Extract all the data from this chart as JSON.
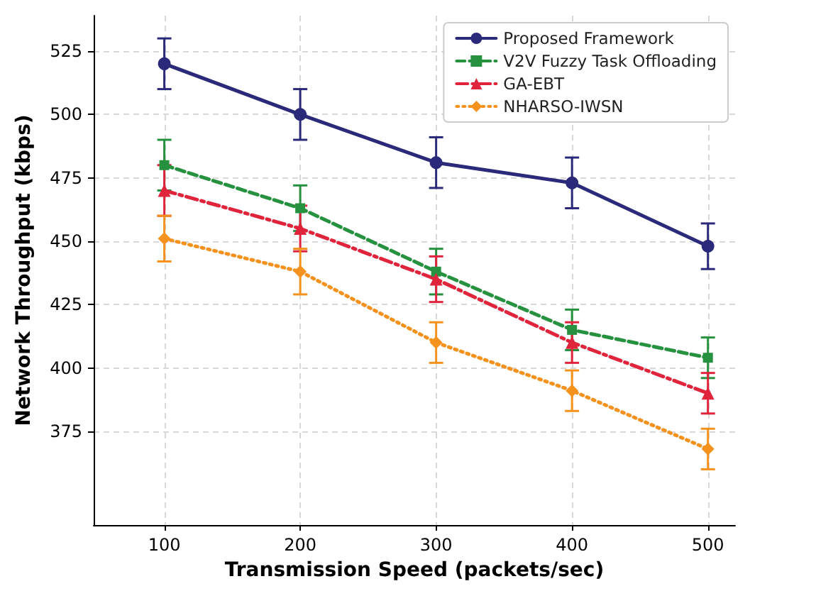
{
  "chart_data": {
    "type": "line",
    "xlabel": "Transmission Speed (packets/sec)",
    "ylabel": "Network Throughput (kbps)",
    "x": [
      100,
      200,
      300,
      400,
      500
    ],
    "xlim": [
      48,
      520
    ],
    "xticks": [
      100,
      200,
      300,
      400,
      500
    ],
    "ylim": [
      338,
      539
    ],
    "yticks": [
      375,
      400,
      425,
      450,
      475,
      500,
      525
    ],
    "grid": true,
    "legend": "top right",
    "series": [
      {
        "name": "Proposed Framework",
        "color": "#2b2a7a",
        "marker": "circle",
        "line_style": "solid",
        "values": [
          520,
          500,
          481,
          473,
          448
        ],
        "errors": [
          10,
          10,
          10,
          10,
          9
        ]
      },
      {
        "name": "V2V Fuzzy Task Offloading",
        "color": "#26913f",
        "marker": "square",
        "line_style": "dashed",
        "values": [
          480,
          463,
          438,
          415,
          404
        ],
        "errors": [
          10,
          9,
          9,
          8,
          8
        ]
      },
      {
        "name": "GA-EBT",
        "color": "#e0243c",
        "marker": "triangle",
        "line_style": "dashdot",
        "values": [
          470,
          455,
          435,
          410,
          390
        ],
        "errors": [
          10,
          9,
          9,
          8,
          8
        ]
      },
      {
        "name": "NHARSO-IWSN",
        "color": "#f5921e",
        "marker": "diamond",
        "line_style": "dotted",
        "values": [
          451,
          438,
          410,
          391,
          368
        ],
        "errors": [
          9,
          9,
          8,
          8,
          8
        ]
      }
    ]
  }
}
